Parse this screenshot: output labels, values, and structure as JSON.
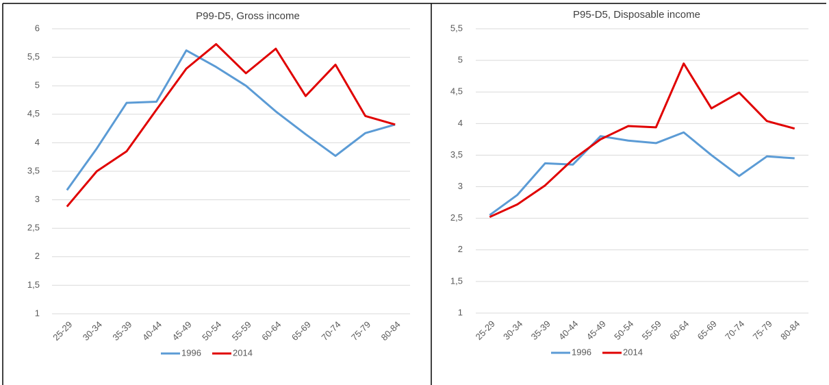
{
  "chart_data": [
    {
      "type": "line",
      "title": "P99-D5, Gross income",
      "categories": [
        "25-29",
        "30-34",
        "35-39",
        "40-44",
        "45-49",
        "50-54",
        "55-59",
        "60-64",
        "65-69",
        "70-74",
        "75-79",
        "80-84"
      ],
      "series": [
        {
          "name": "1996",
          "color": "#5b9bd5",
          "values": [
            3.17,
            3.9,
            4.7,
            4.72,
            5.62,
            5.33,
            5.0,
            4.55,
            4.15,
            3.77,
            4.17,
            4.32
          ]
        },
        {
          "name": "2014",
          "color": "#e00000",
          "values": [
            2.88,
            3.5,
            3.85,
            4.58,
            5.3,
            5.73,
            5.22,
            5.65,
            4.82,
            5.37,
            4.47,
            4.32
          ]
        }
      ],
      "ylim": [
        1,
        6
      ],
      "yticks": [
        1,
        {
          "value": 1.5,
          "label": "1,5"
        },
        2,
        {
          "value": 2.5,
          "label": "2,5"
        },
        3,
        {
          "value": 3.5,
          "label": "3,5"
        },
        4,
        {
          "value": 4.5,
          "label": "4,5"
        },
        5,
        {
          "value": 5.5,
          "label": "5,5"
        },
        6
      ],
      "grid": true,
      "legend": "bottom"
    },
    {
      "type": "line",
      "title": "P95-D5, Disposable income",
      "categories": [
        "25-29",
        "30-34",
        "35-39",
        "40-44",
        "45-49",
        "50-54",
        "55-59",
        "60-64",
        "65-69",
        "70-74",
        "75-79",
        "80-84"
      ],
      "series": [
        {
          "name": "1996",
          "color": "#5b9bd5",
          "values": [
            2.55,
            2.87,
            3.37,
            3.35,
            3.8,
            3.73,
            3.69,
            3.86,
            3.5,
            3.17,
            3.48,
            3.45
          ]
        },
        {
          "name": "2014",
          "color": "#e00000",
          "values": [
            2.52,
            2.72,
            3.02,
            3.43,
            3.75,
            3.96,
            3.94,
            4.95,
            4.24,
            4.49,
            4.04,
            3.92
          ]
        }
      ],
      "ylim": [
        1,
        5.5
      ],
      "yticks": [
        1,
        {
          "value": 1.5,
          "label": "1,5"
        },
        2,
        {
          "value": 2.5,
          "label": "2,5"
        },
        3,
        {
          "value": 3.5,
          "label": "3,5"
        },
        4,
        {
          "value": 4.5,
          "label": "4,5"
        },
        5,
        {
          "value": 5.5,
          "label": "5,5"
        }
      ],
      "grid": true,
      "legend": "bottom"
    }
  ]
}
